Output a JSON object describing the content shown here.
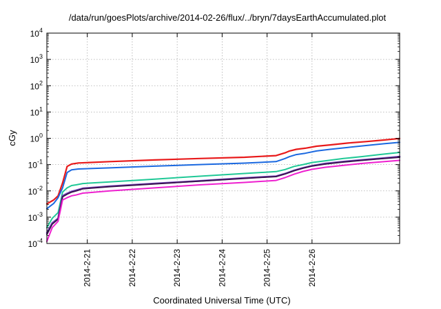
{
  "chart_data": {
    "type": "line",
    "title": "/data/run/goesPlots/archive/2014-02-26/flux/../bryn/7daysEarthAccumulated.plot",
    "xlabel": "Coordinated Universal Time (UTC)",
    "ylabel": "cGy",
    "y_scale": "log",
    "ylim": [
      0.0001,
      10000
    ],
    "xlim": [
      -0.9,
      6.95
    ],
    "grid": true,
    "y_ticks": [
      {
        "value": 0.0001,
        "base": "10",
        "exp": "-4"
      },
      {
        "value": 0.001,
        "base": "10",
        "exp": "-3"
      },
      {
        "value": 0.01,
        "base": "10",
        "exp": "-2"
      },
      {
        "value": 0.1,
        "base": "10",
        "exp": "-1"
      },
      {
        "value": 1,
        "base": "10",
        "exp": "0"
      },
      {
        "value": 10,
        "base": "10",
        "exp": "1"
      },
      {
        "value": 100,
        "base": "10",
        "exp": "2"
      },
      {
        "value": 1000,
        "base": "10",
        "exp": "3"
      },
      {
        "value": 10000,
        "base": "10",
        "exp": "4"
      }
    ],
    "x_ticks": [
      {
        "value": 0,
        "label": "2014-2-21"
      },
      {
        "value": 1,
        "label": "2014-2-22"
      },
      {
        "value": 2,
        "label": "2014-2-23"
      },
      {
        "value": 3,
        "label": "2014-2-24"
      },
      {
        "value": 4,
        "label": "2014-2-25"
      },
      {
        "value": 5,
        "label": "2014-2-26"
      }
    ],
    "x_ticks_note": "x values are days after 2014-2-21 00:00 UTC",
    "series": [
      {
        "color": "#e8191a",
        "width": 2.2,
        "x": [
          -0.9,
          -0.75,
          -0.65,
          -0.55,
          -0.45,
          -0.35,
          -0.2,
          0.5,
          1.5,
          2.5,
          3.5,
          4.2,
          4.4,
          4.5,
          4.65,
          4.85,
          5.1,
          5.4,
          5.8,
          6.2,
          6.6,
          6.95
        ],
        "y": [
          0.0032,
          0.0045,
          0.0065,
          0.02,
          0.085,
          0.105,
          0.115,
          0.13,
          0.15,
          0.17,
          0.19,
          0.22,
          0.28,
          0.33,
          0.38,
          0.42,
          0.5,
          0.56,
          0.66,
          0.75,
          0.86,
          0.98
        ]
      },
      {
        "color": "#1a68e0",
        "width": 2.0,
        "x": [
          -0.9,
          -0.75,
          -0.65,
          -0.55,
          -0.45,
          -0.35,
          -0.2,
          0.5,
          1.5,
          2.5,
          3.5,
          4.2,
          4.4,
          4.5,
          4.65,
          4.85,
          5.1,
          5.4,
          5.8,
          6.2,
          6.6,
          6.95
        ],
        "y": [
          0.0021,
          0.0033,
          0.0055,
          0.013,
          0.05,
          0.063,
          0.068,
          0.075,
          0.087,
          0.1,
          0.114,
          0.13,
          0.17,
          0.2,
          0.24,
          0.27,
          0.33,
          0.38,
          0.45,
          0.53,
          0.62,
          0.7
        ]
      },
      {
        "color": "#1fc896",
        "width": 2.0,
        "x": [
          -0.9,
          -0.78,
          -0.65,
          -0.55,
          -0.45,
          -0.35,
          -0.25,
          -0.1,
          0.5,
          1.5,
          2.5,
          3.5,
          4.2,
          4.4,
          4.6,
          4.8,
          5.0,
          5.3,
          5.7,
          6.1,
          6.5,
          6.95
        ],
        "y": [
          0.0004,
          0.0009,
          0.0015,
          0.009,
          0.013,
          0.016,
          0.017,
          0.019,
          0.022,
          0.028,
          0.036,
          0.046,
          0.054,
          0.065,
          0.085,
          0.1,
          0.12,
          0.14,
          0.17,
          0.2,
          0.24,
          0.29
        ]
      },
      {
        "color": "#7a4fc4",
        "width": 2.6,
        "x": [
          -0.9,
          -0.78,
          -0.65,
          -0.55,
          -0.45,
          -0.35,
          -0.25,
          -0.1,
          0.5,
          1.5,
          2.5,
          3.5,
          4.2,
          4.4,
          4.6,
          4.8,
          5.0,
          5.3,
          5.7,
          6.1,
          6.5,
          6.95
        ],
        "y": [
          0.00025,
          0.0006,
          0.0009,
          0.0065,
          0.008,
          0.0095,
          0.0105,
          0.0125,
          0.015,
          0.019,
          0.024,
          0.031,
          0.036,
          0.045,
          0.06,
          0.075,
          0.09,
          0.11,
          0.13,
          0.15,
          0.17,
          0.2
        ]
      },
      {
        "color": "#3a1050",
        "width": 2.0,
        "x": [
          -0.9,
          -0.78,
          -0.65,
          -0.55,
          -0.45,
          -0.35,
          -0.25,
          -0.1,
          0.5,
          1.5,
          2.5,
          3.5,
          4.2,
          4.4,
          4.6,
          4.8,
          5.0,
          5.3,
          5.7,
          6.1,
          6.5,
          6.95
        ],
        "y": [
          0.00022,
          0.00055,
          0.00085,
          0.006,
          0.0075,
          0.009,
          0.01,
          0.012,
          0.0145,
          0.0185,
          0.0235,
          0.03,
          0.035,
          0.044,
          0.058,
          0.073,
          0.088,
          0.105,
          0.125,
          0.145,
          0.165,
          0.19
        ]
      },
      {
        "color": "#ee1fcf",
        "width": 2.0,
        "x": [
          -0.9,
          -0.78,
          -0.65,
          -0.55,
          -0.45,
          -0.35,
          -0.25,
          -0.1,
          0.5,
          1.5,
          2.5,
          3.5,
          4.2,
          4.4,
          4.6,
          4.8,
          5.0,
          5.3,
          5.7,
          6.1,
          6.5,
          6.95
        ],
        "y": [
          0.00012,
          0.0004,
          0.0007,
          0.0045,
          0.0055,
          0.0065,
          0.007,
          0.0082,
          0.01,
          0.013,
          0.017,
          0.021,
          0.025,
          0.032,
          0.043,
          0.055,
          0.066,
          0.079,
          0.093,
          0.11,
          0.125,
          0.145
        ]
      }
    ]
  }
}
